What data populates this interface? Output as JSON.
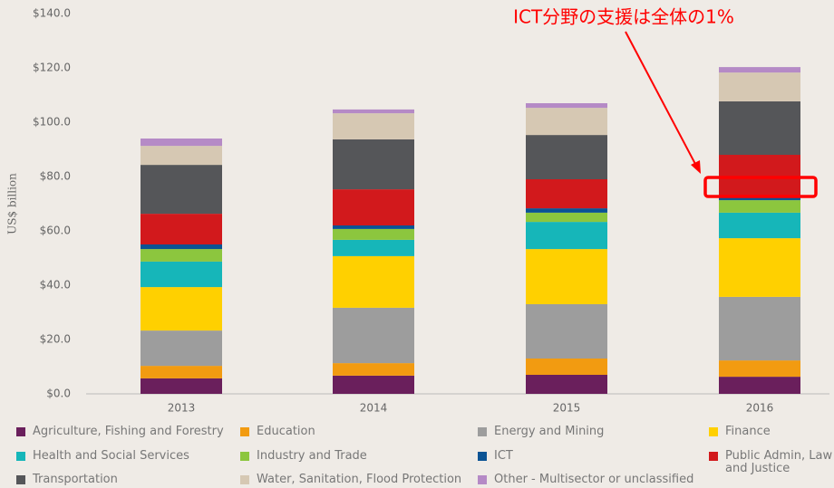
{
  "chart_data": {
    "type": "stacked_bar",
    "annotation": "ICT分野の支援は全体の1%",
    "y_label": "US$ billion",
    "categories": [
      "2013",
      "2014",
      "2015",
      "2016"
    ],
    "series": [
      {
        "name": "Agriculture, Fishing and Forestry",
        "color": "#6a1f5c",
        "values": [
          5.7,
          6.7,
          7,
          6.3
        ]
      },
      {
        "name": "Education",
        "color": "#f29b11",
        "values": [
          4.6,
          4.6,
          6,
          6
        ]
      },
      {
        "name": "Energy and Mining",
        "color": "#9d9d9d",
        "values": [
          13,
          20.4,
          20,
          23.4
        ]
      },
      {
        "name": "Finance",
        "color": "#ffd000",
        "values": [
          16,
          19,
          20.3,
          21.6
        ]
      },
      {
        "name": "Health and Social Services",
        "color": "#16b6b9",
        "values": [
          9.4,
          6,
          10,
          9.4
        ]
      },
      {
        "name": "Industry and Trade",
        "color": "#8cc63e",
        "values": [
          4.6,
          4,
          3.4,
          4.6
        ]
      },
      {
        "name": "ICT",
        "color": "#0b5394",
        "values": [
          1.7,
          1.3,
          1.6,
          1.7
        ]
      },
      {
        "name": "Public Admin, Law and Justice",
        "color": "#d2191c",
        "values": [
          11.3,
          13.3,
          10.7,
          15
        ]
      },
      {
        "name": "Transportation",
        "color": "#555659",
        "values": [
          18,
          18.4,
          16.3,
          19.7
        ]
      },
      {
        "name": "Water, Sanitation, Flood Protection",
        "color": "#d6c8b3",
        "values": [
          7,
          9.6,
          10,
          10.6
        ]
      },
      {
        "name": "Other - Multisector or unclassified",
        "color": "#b58ac6",
        "values": [
          2.7,
          1.4,
          1.7,
          2
        ]
      }
    ],
    "ylim": [
      0,
      140
    ],
    "yticks": [
      {
        "value": 0,
        "label": "$0.0"
      },
      {
        "value": 20,
        "label": "$20.0"
      },
      {
        "value": 40,
        "label": "$40.0"
      },
      {
        "value": 60,
        "label": "$60.0"
      },
      {
        "value": 80,
        "label": "$80.0"
      },
      {
        "value": 100,
        "label": "$100.0"
      },
      {
        "value": 120,
        "label": "$120.0"
      },
      {
        "value": 140,
        "label": "$140.0"
      }
    ]
  }
}
